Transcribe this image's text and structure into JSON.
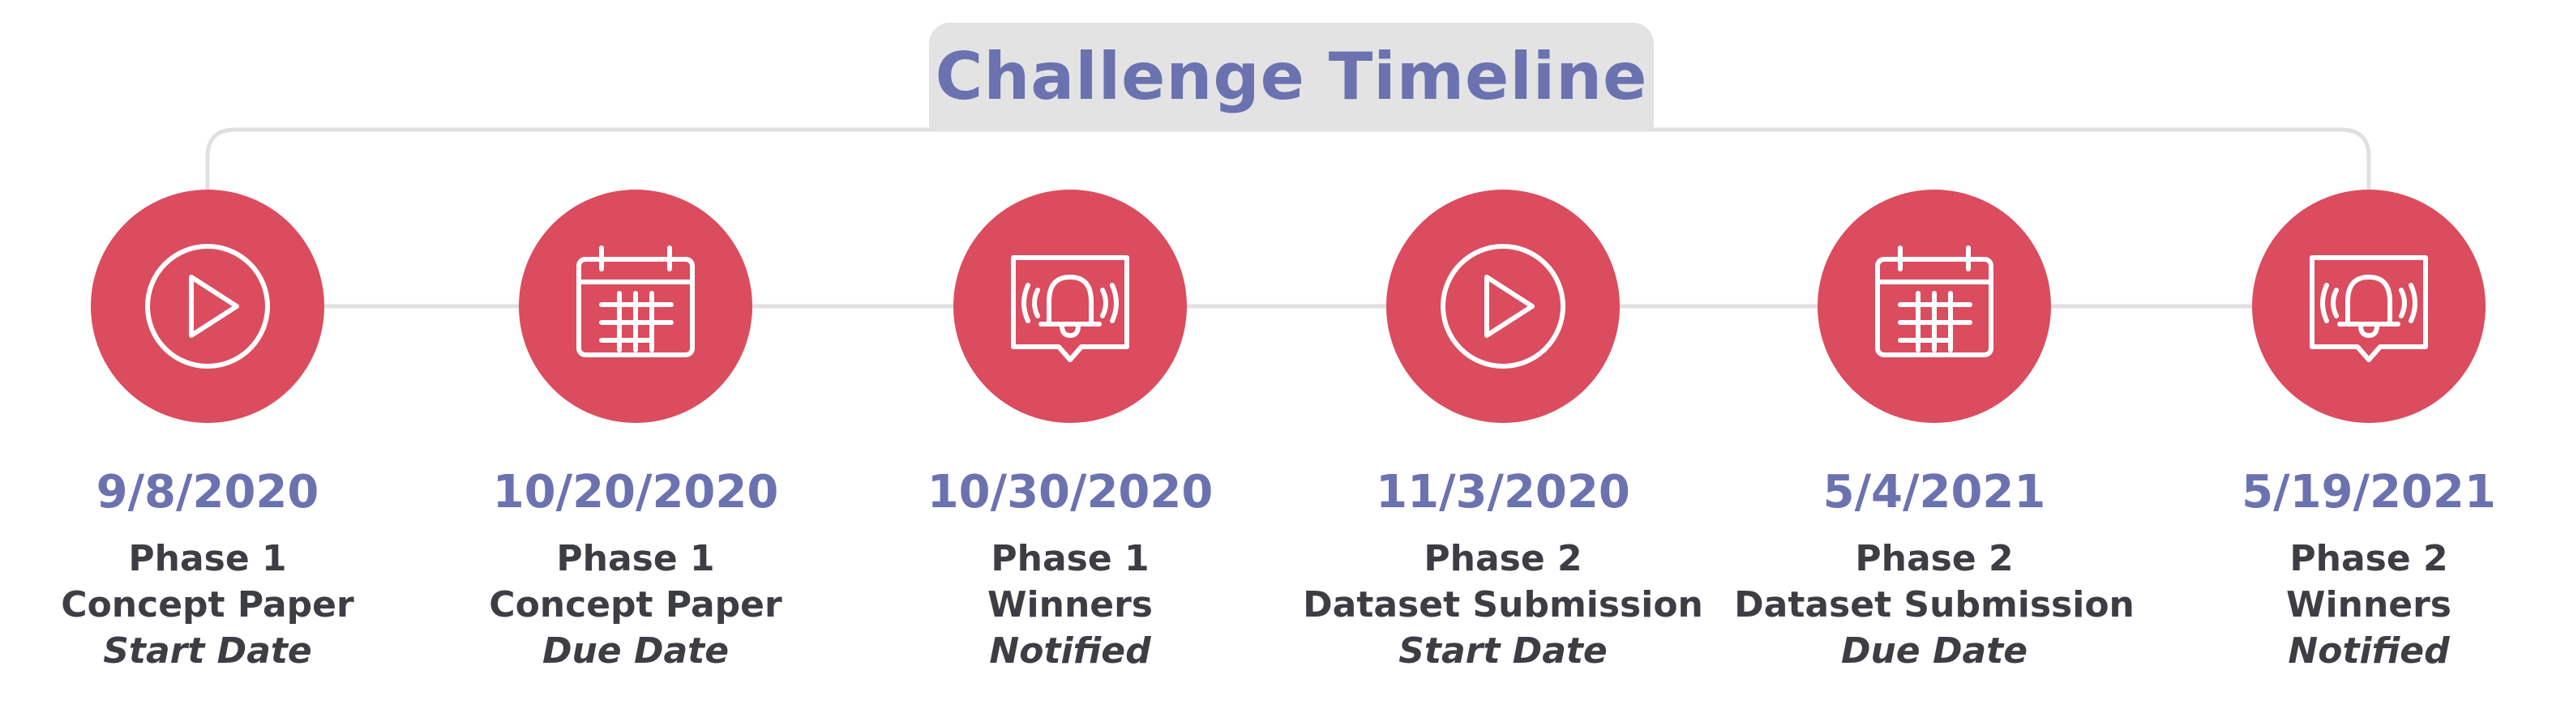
{
  "title": "Challenge Timeline",
  "colors": {
    "accent": "#db4c5e",
    "title": "#6b72b0",
    "date": "#6b72b0",
    "text": "#3d3e44",
    "title_bg": "#e3e3e4",
    "connector": "#e0e0e2"
  },
  "milestones": [
    {
      "icon": "play-icon",
      "date": "9/8/2020",
      "phase": "Phase 1",
      "event": "Concept Paper",
      "status": "Start Date"
    },
    {
      "icon": "calendar-icon",
      "date": "10/20/2020",
      "phase": "Phase 1",
      "event": "Concept Paper",
      "status": "Due Date"
    },
    {
      "icon": "notification-bell-icon",
      "date": "10/30/2020",
      "phase": "Phase 1",
      "event": "Winners",
      "status": "Notified"
    },
    {
      "icon": "play-icon",
      "date": "11/3/2020",
      "phase": "Phase 2",
      "event": "Dataset Submission",
      "status": "Start Date"
    },
    {
      "icon": "calendar-icon",
      "date": "5/4/2021",
      "phase": "Phase 2",
      "event": "Dataset Submission",
      "status": "Due Date"
    },
    {
      "icon": "notification-bell-icon",
      "date": "5/19/2021",
      "phase": "Phase 2",
      "event": "Winners",
      "status": "Notified"
    }
  ]
}
